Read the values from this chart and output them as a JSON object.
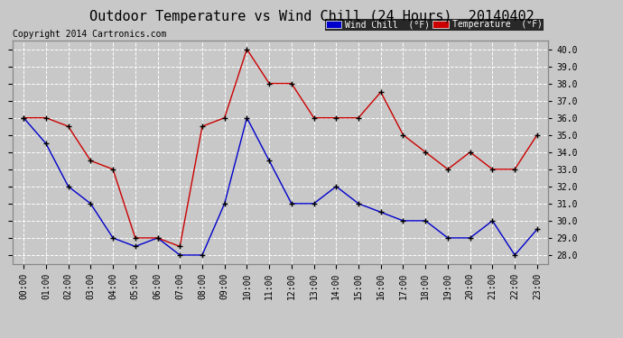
{
  "title": "Outdoor Temperature vs Wind Chill (24 Hours)  20140402",
  "copyright": "Copyright 2014 Cartronics.com",
  "background_color": "#c8c8c8",
  "plot_background": "#c8c8c8",
  "grid_color": "#ffffff",
  "hours": [
    "00:00",
    "01:00",
    "02:00",
    "03:00",
    "04:00",
    "05:00",
    "06:00",
    "07:00",
    "08:00",
    "09:00",
    "10:00",
    "11:00",
    "12:00",
    "13:00",
    "14:00",
    "15:00",
    "16:00",
    "17:00",
    "18:00",
    "19:00",
    "20:00",
    "21:00",
    "22:00",
    "23:00"
  ],
  "temperature": [
    36.0,
    36.0,
    35.5,
    33.5,
    33.0,
    29.0,
    29.0,
    28.5,
    35.5,
    36.0,
    40.0,
    38.0,
    38.0,
    36.0,
    36.0,
    36.0,
    37.5,
    35.0,
    34.0,
    33.0,
    34.0,
    33.0,
    33.0,
    35.0
  ],
  "wind_chill": [
    36.0,
    34.5,
    32.0,
    31.0,
    29.0,
    28.5,
    29.0,
    28.0,
    28.0,
    31.0,
    36.0,
    33.5,
    31.0,
    31.0,
    32.0,
    31.0,
    30.5,
    30.0,
    30.0,
    29.0,
    29.0,
    30.0,
    28.0,
    29.5
  ],
  "temp_color": "#cc0000",
  "wind_color": "#0000cc",
  "ylim_min": 27.5,
  "ylim_max": 40.5,
  "yticks": [
    28.0,
    29.0,
    30.0,
    31.0,
    32.0,
    33.0,
    34.0,
    35.0,
    36.0,
    37.0,
    38.0,
    39.0,
    40.0
  ],
  "title_fontsize": 11,
  "tick_fontsize": 7,
  "copyright_fontsize": 7,
  "legend_wind_label": "Wind Chill  (°F)",
  "legend_temp_label": "Temperature  (°F)",
  "legend_wind_bg": "#0000cc",
  "legend_temp_bg": "#cc0000"
}
